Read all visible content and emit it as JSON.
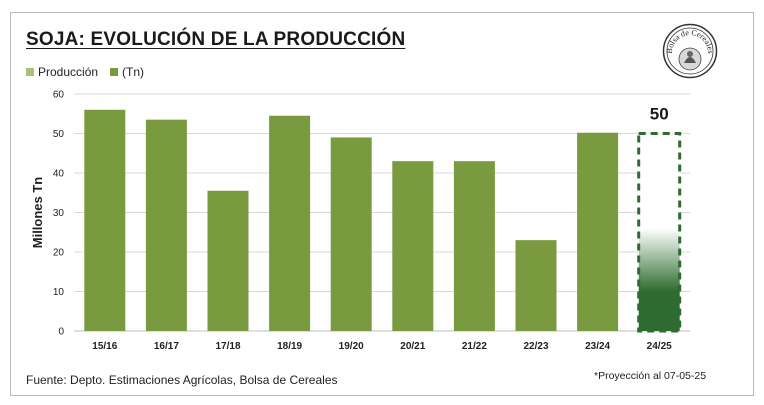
{
  "colors": {
    "bar": "#7a9a3f",
    "projection": "#2e6b30",
    "grid": "#d9d9d9",
    "legend_light": "#a9c17a"
  },
  "title": "SOJA: EVOLUCIÓN DE LA PRODUCCIÓN",
  "legend": [
    {
      "label": "Producción",
      "color": "#a9c17a"
    },
    {
      "label": "(Tn)",
      "color": "#7a9a3f"
    }
  ],
  "seal": {
    "text": "Bolsa de Cereales",
    "icon": "seal-logo-icon"
  },
  "footer": {
    "source": "Fuente: Depto. Estimaciones Agrícolas, Bolsa de Cereales",
    "note": "*Proyección al 07-05-25"
  },
  "chart_data": {
    "type": "bar",
    "title": "SOJA: EVOLUCIÓN DE LA PRODUCCIÓN",
    "xlabel": "",
    "ylabel": "Millones Tn",
    "ylim": [
      0,
      60
    ],
    "yticks": [
      0,
      10,
      20,
      30,
      40,
      50,
      60
    ],
    "grid": true,
    "categories": [
      "15/16",
      "16/17",
      "17/18",
      "18/19",
      "19/20",
      "20/21",
      "21/22",
      "22/23",
      "23/24",
      "24/25"
    ],
    "values": [
      56,
      53.5,
      35.5,
      54.5,
      49,
      43,
      43,
      23,
      50.2,
      50
    ],
    "projected": [
      false,
      false,
      false,
      false,
      false,
      false,
      false,
      false,
      false,
      true
    ],
    "annotations": [
      {
        "category": "24/25",
        "text": "50"
      }
    ]
  }
}
